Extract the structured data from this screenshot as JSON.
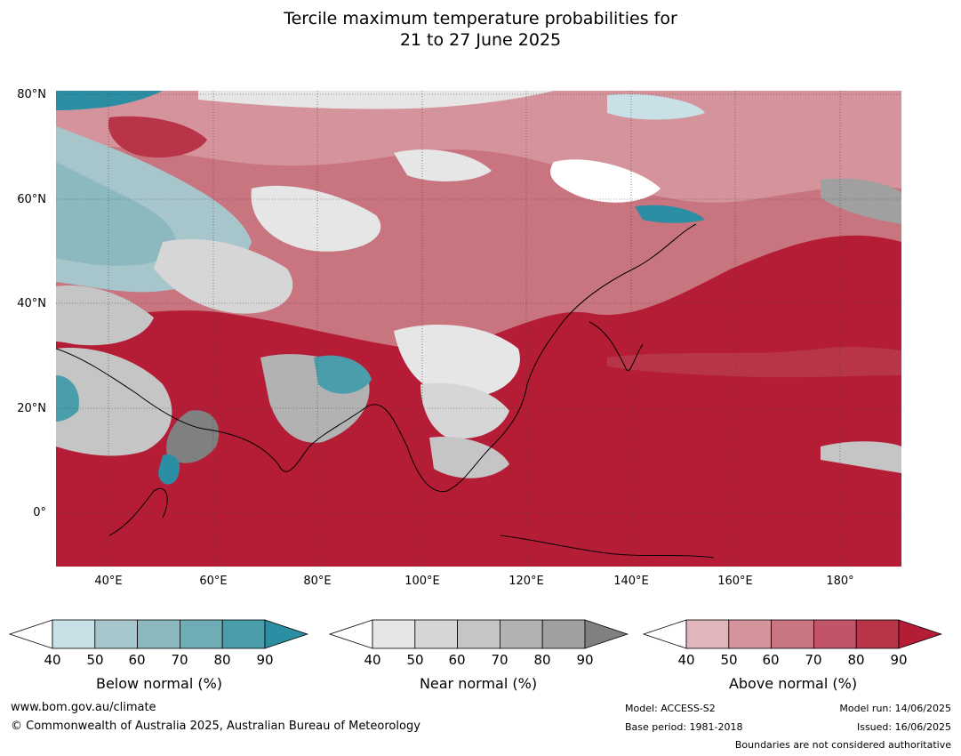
{
  "title": {
    "line1": "Tercile maximum temperature probabilities for",
    "line2": "21 to 27 June 2025"
  },
  "map": {
    "region": "Asia",
    "lat_labels": [
      "80°N",
      "60°N",
      "40°N",
      "20°N",
      "0°"
    ],
    "lon_labels": [
      "40°E",
      "60°E",
      "80°E",
      "100°E",
      "120°E",
      "140°E",
      "160°E",
      "180°"
    ],
    "colors": {
      "below": [
        "#c8e1e6",
        "#a6c6cb",
        "#8cb9c0",
        "#6eacb6",
        "#4a9eac",
        "#2b8ea2"
      ],
      "near": [
        "#e6e6e6",
        "#d6d6d6",
        "#c5c5c5",
        "#b2b2b2",
        "#a0a0a0",
        "#808080"
      ],
      "above": [
        "#e1b5bc",
        "#d5949c",
        "#c97580",
        "#c15567",
        "#b83449",
        "#b51c36"
      ]
    }
  },
  "colorbars": [
    {
      "label": "Below normal (%)",
      "ticks": [
        "40",
        "50",
        "60",
        "70",
        "80",
        "90"
      ]
    },
    {
      "label": "Near normal (%)",
      "ticks": [
        "40",
        "50",
        "60",
        "70",
        "80",
        "90"
      ]
    },
    {
      "label": "Above normal (%)",
      "ticks": [
        "40",
        "50",
        "60",
        "70",
        "80",
        "90"
      ]
    }
  ],
  "footer": {
    "website": "www.bom.gov.au/climate",
    "copyright": "© Commonwealth of Australia 2025, Australian Bureau of Meteorology",
    "model": "Model: ACCESS-S2",
    "base_period": "Base period: 1981-2018",
    "model_run": "Model run: 14/06/2025",
    "issued": "Issued: 16/06/2025",
    "disclaimer": "Boundaries are not considered authoritative"
  }
}
